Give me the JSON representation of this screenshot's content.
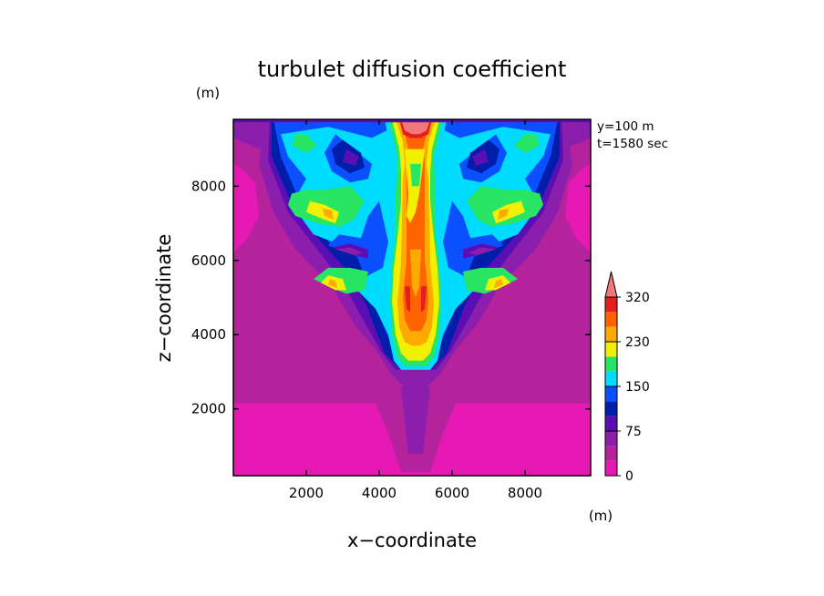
{
  "chart_data": {
    "type": "heatmap",
    "title": "turbulet diffusion coefficient",
    "xlabel": "x−coordinate",
    "ylabel": "z−coordinate",
    "x_unit": "(m)",
    "y_unit": "(m)",
    "annotations": [
      "y=100 m",
      "t=1580 sec"
    ],
    "xlim": [
      0,
      9800
    ],
    "ylim": [
      200,
      9800
    ],
    "x_ticks": [
      2000,
      4000,
      6000,
      8000
    ],
    "y_ticks": [
      2000,
      4000,
      6000,
      8000
    ],
    "grid": false,
    "legend_position": "right",
    "colorbar": {
      "levels": [
        0,
        25,
        50,
        75,
        100,
        125,
        150,
        175,
        200,
        230,
        260,
        290,
        320
      ],
      "tick_labels": [
        "320",
        "230",
        "150",
        "75",
        "0"
      ],
      "tick_values": [
        320,
        230,
        150,
        75,
        0
      ],
      "colors": [
        "#e619b4",
        "#b4239b",
        "#8c1ead",
        "#5a0fb4",
        "#001eaa",
        "#0a50ff",
        "#00dcff",
        "#28e664",
        "#f0f000",
        "#ffaa00",
        "#ff6400",
        "#e61e1e",
        "#f07878"
      ],
      "extend": "max"
    }
  }
}
